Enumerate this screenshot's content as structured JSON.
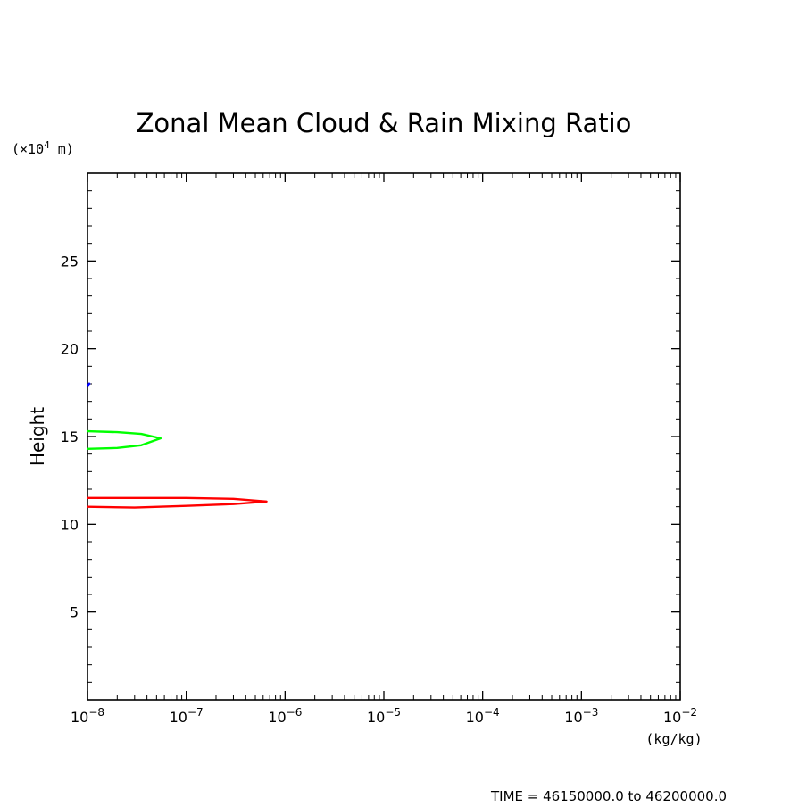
{
  "chart_data": {
    "type": "line",
    "title": "Zonal Mean Cloud & Rain Mixing Ratio",
    "ylabel": "Height",
    "y_unit_prefix": "(×10",
    "y_unit_exp": "4",
    "y_unit_suffix": " m)",
    "x_unit": "(kg/kg)",
    "footer": "TIME = 46150000.0 to 46200000.0",
    "x_scale": "log",
    "xlim": [
      1e-08,
      0.01
    ],
    "ylim": [
      0,
      30
    ],
    "x_ticks": [
      {
        "value": 1e-08,
        "exp": "−8"
      },
      {
        "value": 1e-07,
        "exp": "−7"
      },
      {
        "value": 1e-06,
        "exp": "−6"
      },
      {
        "value": 1e-05,
        "exp": "−5"
      },
      {
        "value": 0.0001,
        "exp": "−4"
      },
      {
        "value": 0.001,
        "exp": "−3"
      },
      {
        "value": 0.01,
        "exp": "−2"
      }
    ],
    "x_tick_base": "10",
    "y_ticks": [
      5,
      10,
      15,
      20,
      25
    ],
    "grid": false,
    "legend": "none",
    "series": [
      {
        "color": "#ff0000",
        "points": [
          [
            1e-08,
            11.0
          ],
          [
            3e-08,
            10.95
          ],
          [
            1e-07,
            11.05
          ],
          [
            3e-07,
            11.15
          ],
          [
            5e-07,
            11.25
          ],
          [
            6.5e-07,
            11.3
          ],
          [
            5e-07,
            11.35
          ],
          [
            3e-07,
            11.45
          ],
          [
            1e-07,
            11.5
          ],
          [
            1e-08,
            11.5
          ]
        ]
      },
      {
        "color": "#00ff00",
        "points": [
          [
            1e-08,
            14.3
          ],
          [
            2e-08,
            14.35
          ],
          [
            3.5e-08,
            14.5
          ],
          [
            5.5e-08,
            14.9
          ],
          [
            3.5e-08,
            15.15
          ],
          [
            2e-08,
            15.25
          ],
          [
            1e-08,
            15.3
          ]
        ]
      },
      {
        "color": "#0000ff",
        "points": [
          [
            1e-08,
            17.9
          ],
          [
            1.06e-08,
            18.05
          ]
        ]
      }
    ]
  }
}
